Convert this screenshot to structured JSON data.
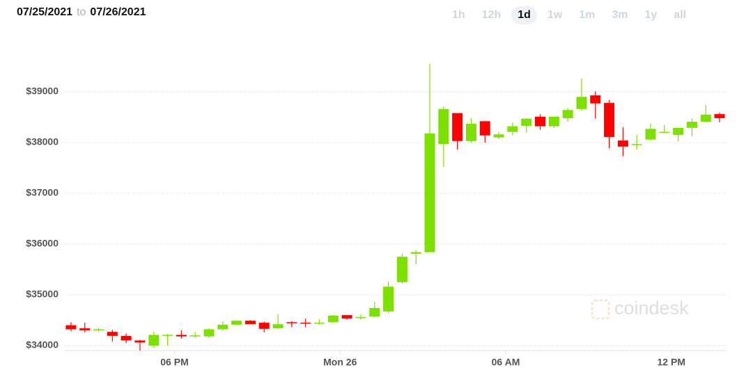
{
  "header": {
    "from": "07/25/2021",
    "to_word": "to",
    "to": "07/26/2021",
    "range_buttons": [
      "1h",
      "12h",
      "1d",
      "1w",
      "1m",
      "3m",
      "1y",
      "all"
    ],
    "selected_index": 2
  },
  "chart_data": {
    "type": "candlestick",
    "watermark": "coindesk",
    "up_color": "#7ee000",
    "down_color": "#ff0000",
    "grid": true,
    "x": [
      "2021-07-25T14:15",
      "2021-07-25T14:45",
      "2021-07-25T15:15",
      "2021-07-25T15:45",
      "2021-07-25T16:15",
      "2021-07-25T16:45",
      "2021-07-25T17:15",
      "2021-07-25T17:45",
      "2021-07-25T18:15",
      "2021-07-25T18:45",
      "2021-07-25T19:15",
      "2021-07-25T19:45",
      "2021-07-25T20:15",
      "2021-07-25T20:45",
      "2021-07-25T21:15",
      "2021-07-25T21:45",
      "2021-07-25T22:15",
      "2021-07-25T22:45",
      "2021-07-25T23:15",
      "2021-07-25T23:45",
      "2021-07-26T00:15",
      "2021-07-26T00:45",
      "2021-07-26T01:15",
      "2021-07-26T01:45",
      "2021-07-26T02:15",
      "2021-07-26T02:45",
      "2021-07-26T03:15",
      "2021-07-26T03:45",
      "2021-07-26T04:15",
      "2021-07-26T04:45",
      "2021-07-26T05:15",
      "2021-07-26T05:45",
      "2021-07-26T06:15",
      "2021-07-26T06:45",
      "2021-07-26T07:15",
      "2021-07-26T07:45",
      "2021-07-26T08:15",
      "2021-07-26T08:45",
      "2021-07-26T09:15",
      "2021-07-26T09:45",
      "2021-07-26T10:15",
      "2021-07-26T10:45",
      "2021-07-26T11:15",
      "2021-07-26T11:45",
      "2021-07-26T12:15",
      "2021-07-26T12:45",
      "2021-07-26T13:15",
      "2021-07-26T13:45"
    ],
    "open": [
      34400,
      34340,
      34300,
      34270,
      34190,
      34100,
      34000,
      34200,
      34210,
      34180,
      34180,
      34320,
      34410,
      34490,
      34450,
      34340,
      34460,
      34450,
      34440,
      34460,
      34600,
      34550,
      34570,
      34670,
      35250,
      35810,
      35840,
      37970,
      38580,
      38030,
      38420,
      38100,
      38210,
      38330,
      38510,
      38320,
      38480,
      38660,
      38930,
      38780,
      38040,
      37950,
      38060,
      38200,
      38150,
      38290,
      38410,
      38560
    ],
    "high": [
      34460,
      34450,
      34350,
      34310,
      34240,
      34110,
      34270,
      34230,
      34300,
      34270,
      34340,
      34480,
      34490,
      34500,
      34470,
      34620,
      34480,
      34530,
      34520,
      34600,
      34600,
      34620,
      34860,
      35260,
      35810,
      35880,
      39550,
      38710,
      38580,
      38480,
      38420,
      38210,
      38400,
      38480,
      38560,
      38510,
      38680,
      39260,
      39010,
      38840,
      38300,
      38150,
      38370,
      38350,
      38290,
      38470,
      38740,
      38590
    ],
    "low": [
      34280,
      34260,
      34270,
      34080,
      34050,
      33900,
      33950,
      34000,
      34140,
      34150,
      34150,
      34290,
      34400,
      34420,
      34260,
      34330,
      34360,
      34360,
      34410,
      34440,
      34510,
      34510,
      34560,
      34640,
      35220,
      35600,
      35840,
      37520,
      37860,
      38000,
      38000,
      38070,
      38140,
      38200,
      38250,
      38290,
      38410,
      38630,
      38470,
      37890,
      37730,
      37860,
      38030,
      38200,
      38030,
      38120,
      38400,
      38400
    ],
    "close": [
      34320,
      34300,
      34320,
      34190,
      34100,
      34060,
      34210,
      34210,
      34180,
      34200,
      34320,
      34410,
      34490,
      34420,
      34330,
      34420,
      34440,
      34440,
      34450,
      34590,
      34530,
      34560,
      34740,
      35160,
      35750,
      35840,
      38180,
      38660,
      38030,
      38370,
      38140,
      38160,
      38320,
      38470,
      38320,
      38510,
      38640,
      38900,
      38770,
      38110,
      37920,
      37970,
      38270,
      38210,
      38290,
      38410,
      38550,
      38480
    ],
    "xlim": [
      "2021-07-25T14:00",
      "2021-07-26T14:00"
    ],
    "xticks": [
      {
        "value": "2021-07-25T18:00",
        "label": "06 PM"
      },
      {
        "value": "2021-07-26T00:00",
        "label": "Mon 26"
      },
      {
        "value": "2021-07-26T06:00",
        "label": "06 AM"
      },
      {
        "value": "2021-07-26T12:00",
        "label": "12 PM"
      }
    ],
    "ylim": [
      33900,
      39900
    ],
    "yticks": [
      {
        "value": 34000,
        "label": "$34000"
      },
      {
        "value": 35000,
        "label": "$35000"
      },
      {
        "value": 36000,
        "label": "$36000"
      },
      {
        "value": 37000,
        "label": "$37000"
      },
      {
        "value": 38000,
        "label": "$38000"
      },
      {
        "value": 39000,
        "label": "$39000"
      }
    ]
  }
}
